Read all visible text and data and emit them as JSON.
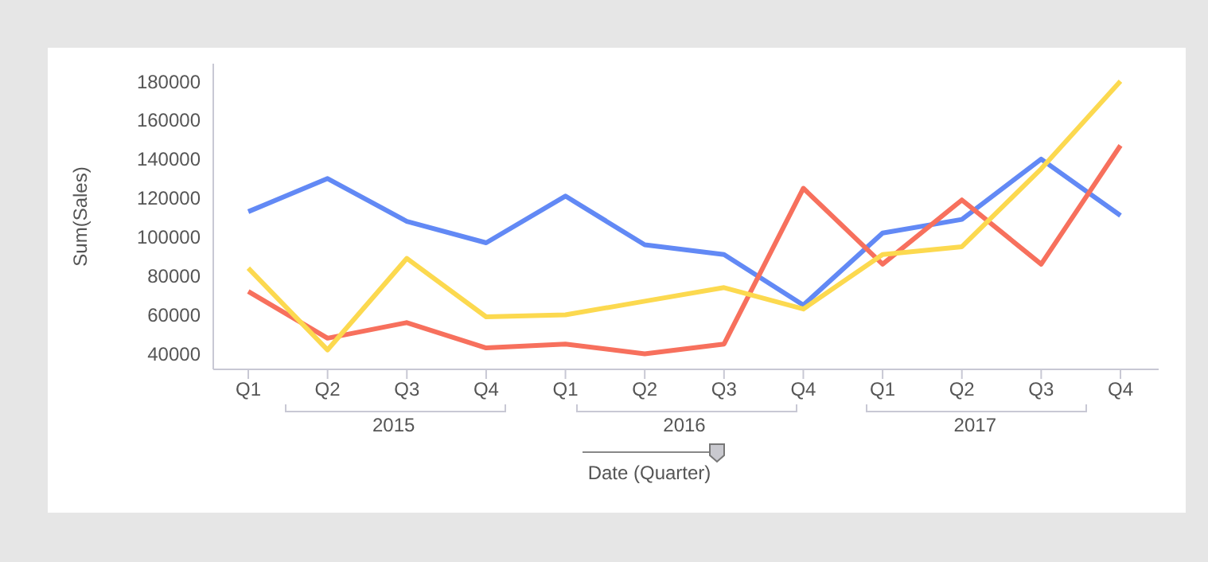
{
  "chart_data": {
    "type": "line",
    "ylabel": "Sum(Sales)",
    "xlabel": "Date (Quarter)",
    "categories": [
      "Q1",
      "Q2",
      "Q3",
      "Q4",
      "Q1",
      "Q2",
      "Q3",
      "Q4",
      "Q1",
      "Q2",
      "Q3",
      "Q4"
    ],
    "annotations": [
      "2015",
      "2016",
      "2017"
    ],
    "ylim": [
      32000,
      189000
    ],
    "yticks": [
      40000,
      60000,
      80000,
      100000,
      120000,
      140000,
      160000,
      180000
    ],
    "marker": "none",
    "line_style": "solid",
    "series": [
      {
        "color": "#6289f5",
        "values": [
          113000,
          130000,
          108000,
          97000,
          121000,
          96000,
          91000,
          65000,
          102000,
          109000,
          140000,
          111000
        ]
      },
      {
        "color": "#f7705d",
        "values": [
          72000,
          48000,
          56000,
          43000,
          45000,
          40000,
          45000,
          125000,
          86000,
          119000,
          86000,
          147000
        ]
      },
      {
        "color": "#fcd94f",
        "values": [
          84000,
          42000,
          89000,
          59000,
          60000,
          67000,
          74000,
          63000,
          91000,
          95000,
          135000,
          180000
        ]
      }
    ]
  }
}
